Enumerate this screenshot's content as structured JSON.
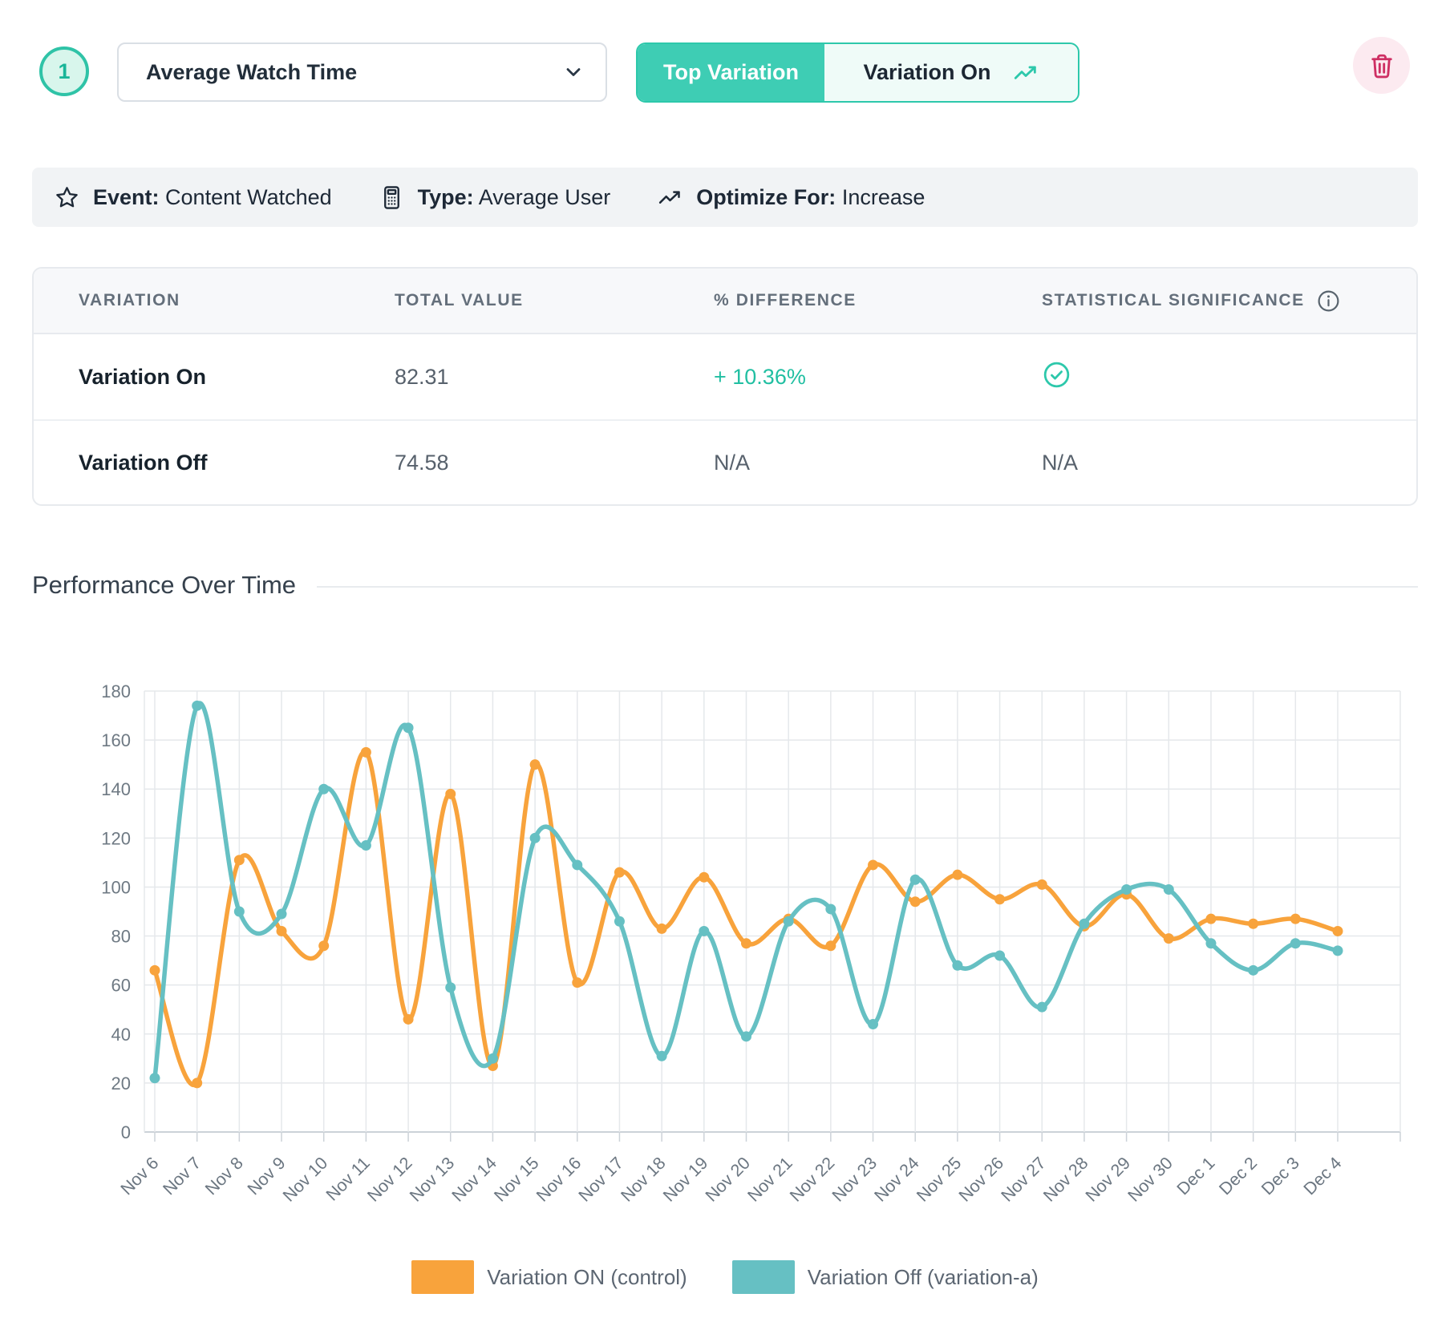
{
  "colors": {
    "accent": "#2dc8ab",
    "accent_badge": "#3ecdb4",
    "accent_text": "#21bfa2",
    "mint_bg": "#effbf8",
    "orange": "#f8a33c",
    "teal": "#66c0c3",
    "danger": "#ce2f63",
    "danger_bg": "#fceaf0",
    "grid": "#e5e8eb",
    "axis": "#ccd2d8",
    "axis_text": "#6e7983"
  },
  "controls": {
    "index_badge": "1",
    "metric_select": {
      "value": "Average Watch Time"
    },
    "variation_toggle": {
      "left_label": "Top Variation",
      "right_label": "Variation On"
    }
  },
  "summary_bar": {
    "event_label": "Event:",
    "event_value": "Content Watched",
    "type_label": "Type:",
    "type_value": "Average User",
    "optimize_label": "Optimize For:",
    "optimize_value": "Increase"
  },
  "results_table": {
    "columns": [
      "Variation",
      "Total Value",
      "% Difference",
      "Statistical Significance"
    ],
    "rows": [
      {
        "variation": "Variation On",
        "total_value": "82.31",
        "difference": "+ 10.36%",
        "significance": "significant-check"
      },
      {
        "variation": "Variation Off",
        "total_value": "74.58",
        "difference": "N/A",
        "significance": "N/A"
      }
    ]
  },
  "chart_section": {
    "title": "Performance Over Time"
  },
  "chart_data": {
    "type": "line",
    "title": "Performance Over Time",
    "categories": [
      "Nov 6",
      "Nov 7",
      "Nov 8",
      "Nov 9",
      "Nov 10",
      "Nov 11",
      "Nov 12",
      "Nov 13",
      "Nov 14",
      "Nov 15",
      "Nov 16",
      "Nov 17",
      "Nov 18",
      "Nov 19",
      "Nov 20",
      "Nov 21",
      "Nov 22",
      "Nov 23",
      "Nov 24",
      "Nov 25",
      "Nov 26",
      "Nov 27",
      "Nov 28",
      "Nov 29",
      "Nov 30",
      "Dec 1",
      "Dec 2",
      "Dec 3",
      "Dec 4"
    ],
    "series": [
      {
        "name": "Variation ON (control)",
        "color": "#f8a33c",
        "values": [
          66,
          20,
          111,
          82,
          76,
          155,
          46,
          138,
          27,
          150,
          61,
          106,
          83,
          104,
          77,
          87,
          76,
          109,
          94,
          105,
          95,
          101,
          84,
          97,
          79,
          87,
          85,
          87,
          82
        ]
      },
      {
        "name": "Variation Off (variation-a)",
        "color": "#66c0c3",
        "values": [
          22,
          174,
          90,
          89,
          140,
          117,
          165,
          59,
          30,
          120,
          109,
          86,
          31,
          82,
          39,
          86,
          91,
          44,
          103,
          68,
          72,
          51,
          85,
          99,
          99,
          77,
          66,
          77,
          74
        ]
      }
    ],
    "xlabel": "",
    "ylabel": "",
    "ylim": [
      0,
      180
    ],
    "ytick_step": 20,
    "grid": true,
    "legend_position": "bottom"
  }
}
